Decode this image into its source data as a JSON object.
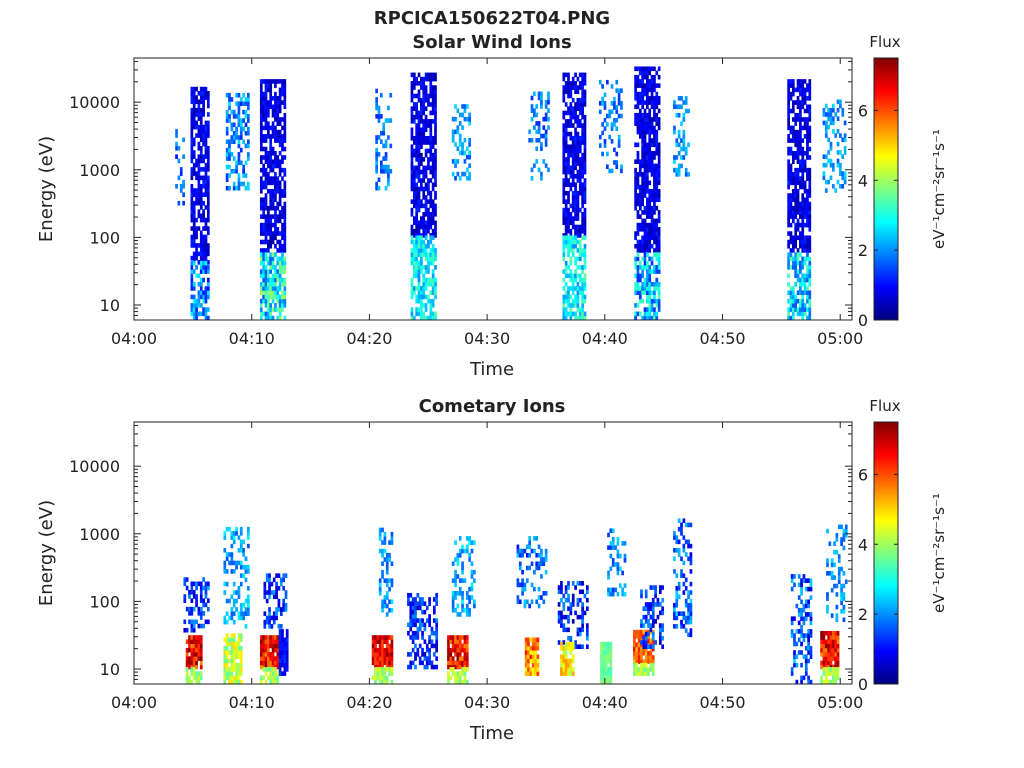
{
  "figure": {
    "file_title": "RPCICA150622T04.PNG"
  },
  "colorbar": {
    "title": "Flux",
    "unit_label": "eV⁻¹cm⁻²sr⁻¹s⁻¹",
    "ticks": [
      "0",
      "2",
      "4",
      "6"
    ],
    "range": [
      0,
      7.5
    ],
    "colormap": "jet",
    "colors": [
      "#00007f",
      "#0000ff",
      "#007fff",
      "#00ffff",
      "#7fff7f",
      "#ffff00",
      "#ff7f00",
      "#ff0000",
      "#7f0000"
    ]
  },
  "chart_data": [
    {
      "type": "heatmap",
      "title": "Solar Wind Ions",
      "xlabel": "Time",
      "ylabel": "Energy (eV)",
      "x_unit": "minutes past 04:00",
      "xlim": [
        0,
        61
      ],
      "ylim": [
        6,
        45000
      ],
      "yscale": "log",
      "xticks": [
        0,
        10,
        20,
        30,
        40,
        50,
        60
      ],
      "xtick_labels": [
        "04:00",
        "04:10",
        "04:20",
        "04:30",
        "04:40",
        "04:50",
        "05:00"
      ],
      "yticks": [
        10,
        100,
        1000,
        10000
      ],
      "ytick_labels": [
        "10",
        "100",
        "1000",
        "10000"
      ],
      "bursts": [
        {
          "t": [
            3.5,
            4.3
          ],
          "e": [
            300,
            4000
          ],
          "flux": [
            1.0,
            2.2
          ],
          "density": 0.35
        },
        {
          "t": [
            4.8,
            6.4
          ],
          "e": [
            40,
            15000
          ],
          "flux": [
            0.3,
            1.2
          ],
          "density": 0.7
        },
        {
          "t": [
            4.8,
            6.4
          ],
          "e": [
            6,
            40
          ],
          "flux": [
            1.0,
            3.0
          ],
          "density": 0.75
        },
        {
          "t": [
            7.8,
            9.6
          ],
          "e": [
            500,
            12000
          ],
          "flux": [
            1.2,
            2.6
          ],
          "density": 0.45
        },
        {
          "t": [
            10.7,
            12.8
          ],
          "e": [
            60,
            20000
          ],
          "flux": [
            0.3,
            1.2
          ],
          "density": 0.75
        },
        {
          "t": [
            10.7,
            12.8
          ],
          "e": [
            6,
            60
          ],
          "flux": [
            1.5,
            4.0
          ],
          "density": 0.8
        },
        {
          "t": [
            20.5,
            21.7
          ],
          "e": [
            500,
            15000
          ],
          "flux": [
            1.2,
            2.4
          ],
          "density": 0.35
        },
        {
          "t": [
            23.5,
            25.6
          ],
          "e": [
            100,
            25000
          ],
          "flux": [
            0.3,
            1.2
          ],
          "density": 0.75
        },
        {
          "t": [
            23.5,
            25.6
          ],
          "e": [
            6,
            100
          ],
          "flux": [
            2.0,
            3.5
          ],
          "density": 0.7
        },
        {
          "t": [
            27.0,
            28.5
          ],
          "e": [
            700,
            9000
          ],
          "flux": [
            1.5,
            2.6
          ],
          "density": 0.4
        },
        {
          "t": [
            33.5,
            35.2
          ],
          "e": [
            700,
            15000
          ],
          "flux": [
            1.2,
            2.4
          ],
          "density": 0.3
        },
        {
          "t": [
            36.4,
            38.4
          ],
          "e": [
            100,
            25000
          ],
          "flux": [
            0.3,
            1.2
          ],
          "density": 0.75
        },
        {
          "t": [
            36.4,
            38.4
          ],
          "e": [
            6,
            100
          ],
          "flux": [
            2.0,
            3.5
          ],
          "density": 0.7
        },
        {
          "t": [
            39.5,
            41.5
          ],
          "e": [
            900,
            20000
          ],
          "flux": [
            1.2,
            2.4
          ],
          "density": 0.3
        },
        {
          "t": [
            42.5,
            44.7
          ],
          "e": [
            60,
            30000
          ],
          "flux": [
            0.3,
            1.2
          ],
          "density": 0.75
        },
        {
          "t": [
            42.5,
            44.7
          ],
          "e": [
            6,
            60
          ],
          "flux": [
            1.2,
            3.5
          ],
          "density": 0.7
        },
        {
          "t": [
            45.8,
            47.2
          ],
          "e": [
            800,
            12000
          ],
          "flux": [
            1.5,
            2.6
          ],
          "density": 0.35
        },
        {
          "t": [
            55.5,
            57.4
          ],
          "e": [
            60,
            20000
          ],
          "flux": [
            0.3,
            1.2
          ],
          "density": 0.75
        },
        {
          "t": [
            55.5,
            57.4
          ],
          "e": [
            6,
            60
          ],
          "flux": [
            1.5,
            3.5
          ],
          "density": 0.7
        },
        {
          "t": [
            58.5,
            60.5
          ],
          "e": [
            400,
            10000
          ],
          "flux": [
            1.5,
            2.6
          ],
          "density": 0.35
        }
      ]
    },
    {
      "type": "heatmap",
      "title": "Cometary Ions",
      "xlabel": "Time",
      "ylabel": "Energy (eV)",
      "x_unit": "minutes past 04:00",
      "xlim": [
        0,
        61
      ],
      "ylim": [
        6,
        45000
      ],
      "yscale": "log",
      "xticks": [
        0,
        10,
        20,
        30,
        40,
        50,
        60
      ],
      "xtick_labels": [
        "04:00",
        "04:10",
        "04:20",
        "04:30",
        "04:40",
        "04:50",
        "05:00"
      ],
      "yticks": [
        10,
        100,
        1000,
        10000
      ],
      "ytick_labels": [
        "10",
        "100",
        "1000",
        "10000"
      ],
      "bursts": [
        {
          "t": [
            4.2,
            6.3
          ],
          "e": [
            35,
            200
          ],
          "flux": [
            0.5,
            2.2
          ],
          "density": 0.45
        },
        {
          "t": [
            4.4,
            5.8
          ],
          "e": [
            10,
            30
          ],
          "flux": [
            5.5,
            7.5
          ],
          "density": 0.95
        },
        {
          "t": [
            4.4,
            5.8
          ],
          "e": [
            6,
            10
          ],
          "flux": [
            3.5,
            4.5
          ],
          "density": 0.8
        },
        {
          "t": [
            7.6,
            9.6
          ],
          "e": [
            40,
            1200
          ],
          "flux": [
            1.5,
            2.8
          ],
          "density": 0.4
        },
        {
          "t": [
            7.6,
            9.0
          ],
          "e": [
            6,
            30
          ],
          "flux": [
            3.5,
            5.0
          ],
          "density": 0.85
        },
        {
          "t": [
            10.7,
            12.2
          ],
          "e": [
            10,
            30
          ],
          "flux": [
            5.5,
            7.5
          ],
          "density": 0.95
        },
        {
          "t": [
            10.7,
            12.2
          ],
          "e": [
            6,
            10
          ],
          "flux": [
            3.5,
            4.5
          ],
          "density": 0.8
        },
        {
          "t": [
            11.0,
            12.9
          ],
          "e": [
            40,
            250
          ],
          "flux": [
            0.5,
            2.2
          ],
          "density": 0.5
        },
        {
          "t": [
            12.3,
            13.0
          ],
          "e": [
            8,
            35
          ],
          "flux": [
            0.6,
            1.4
          ],
          "density": 0.9
        },
        {
          "t": [
            20.2,
            21.8
          ],
          "e": [
            10,
            30
          ],
          "flux": [
            6.0,
            7.5
          ],
          "density": 0.95
        },
        {
          "t": [
            20.2,
            21.8
          ],
          "e": [
            6,
            10
          ],
          "flux": [
            3.5,
            4.5
          ],
          "density": 0.8
        },
        {
          "t": [
            20.8,
            21.9
          ],
          "e": [
            60,
            1100
          ],
          "flux": [
            1.5,
            2.6
          ],
          "density": 0.45
        },
        {
          "t": [
            23.2,
            25.6
          ],
          "e": [
            10,
            130
          ],
          "flux": [
            0.4,
            2.0
          ],
          "density": 0.5
        },
        {
          "t": [
            26.6,
            28.2
          ],
          "e": [
            10,
            30
          ],
          "flux": [
            5.5,
            7.5
          ],
          "density": 0.95
        },
        {
          "t": [
            26.6,
            28.2
          ],
          "e": [
            6,
            10
          ],
          "flux": [
            3.5,
            4.5
          ],
          "density": 0.8
        },
        {
          "t": [
            27.0,
            28.8
          ],
          "e": [
            60,
            900
          ],
          "flux": [
            1.5,
            2.8
          ],
          "density": 0.4
        },
        {
          "t": [
            32.5,
            35.0
          ],
          "e": [
            80,
            900
          ],
          "flux": [
            1.0,
            2.5
          ],
          "density": 0.35
        },
        {
          "t": [
            33.2,
            34.3
          ],
          "e": [
            8,
            28
          ],
          "flux": [
            4.5,
            6.5
          ],
          "density": 0.95
        },
        {
          "t": [
            36.0,
            38.5
          ],
          "e": [
            20,
            180
          ],
          "flux": [
            0.4,
            2.2
          ],
          "density": 0.45
        },
        {
          "t": [
            36.2,
            37.4
          ],
          "e": [
            8,
            25
          ],
          "flux": [
            4.0,
            5.5
          ],
          "density": 0.9
        },
        {
          "t": [
            39.6,
            40.6
          ],
          "e": [
            6,
            22
          ],
          "flux": [
            3.3,
            3.9
          ],
          "density": 0.95
        },
        {
          "t": [
            40.2,
            41.7
          ],
          "e": [
            120,
            1200
          ],
          "flux": [
            1.2,
            2.6
          ],
          "density": 0.35
        },
        {
          "t": [
            42.4,
            44.2
          ],
          "e": [
            12,
            35
          ],
          "flux": [
            5.0,
            6.8
          ],
          "density": 0.95
        },
        {
          "t": [
            42.4,
            44.2
          ],
          "e": [
            8,
            12
          ],
          "flux": [
            3.5,
            4.5
          ],
          "density": 0.8
        },
        {
          "t": [
            43.0,
            45.0
          ],
          "e": [
            20,
            150
          ],
          "flux": [
            0.4,
            2.2
          ],
          "density": 0.45
        },
        {
          "t": [
            45.8,
            47.4
          ],
          "e": [
            30,
            1500
          ],
          "flux": [
            0.8,
            2.6
          ],
          "density": 0.4
        },
        {
          "t": [
            55.8,
            57.5
          ],
          "e": [
            6,
            220
          ],
          "flux": [
            0.5,
            2.5
          ],
          "density": 0.45
        },
        {
          "t": [
            58.3,
            59.8
          ],
          "e": [
            10,
            35
          ],
          "flux": [
            5.5,
            7.5
          ],
          "density": 0.95
        },
        {
          "t": [
            58.3,
            59.8
          ],
          "e": [
            6,
            10
          ],
          "flux": [
            3.5,
            4.5
          ],
          "density": 0.8
        },
        {
          "t": [
            58.8,
            60.6
          ],
          "e": [
            50,
            1300
          ],
          "flux": [
            1.5,
            2.6
          ],
          "density": 0.4
        }
      ]
    }
  ]
}
